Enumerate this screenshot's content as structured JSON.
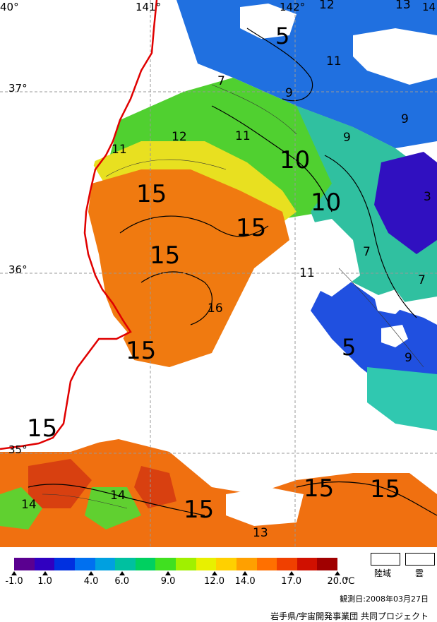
{
  "map": {
    "lon_labels": [
      "40°",
      "141°",
      "142°",
      "14"
    ],
    "lat_labels": [
      "37°",
      "36°",
      "35°"
    ],
    "contour_labels": [
      "5",
      "11",
      "9",
      "7",
      "12",
      "11",
      "11",
      "9",
      "10",
      "9",
      "10",
      "3",
      "15",
      "15",
      "7",
      "15",
      "11",
      "16",
      "7",
      "15",
      "5",
      "9",
      "15",
      "14",
      "14",
      "15",
      "15",
      "15",
      "13",
      "12",
      "13"
    ],
    "colors": {
      "coast": "#e00000",
      "grid": "#999999",
      "warm": "#f07a10",
      "hot": "#d83a10",
      "mid": "#f5b030",
      "green": "#40d020",
      "cyan": "#20c0a0",
      "blue": "#2060e0",
      "deep": "#3010c0"
    }
  },
  "legend": {
    "colorbar_stops": [
      "#5a0090",
      "#3000c0",
      "#0030e0",
      "#0070f0",
      "#00a0e0",
      "#00c0a0",
      "#00d060",
      "#40e020",
      "#a0f000",
      "#e8f000",
      "#ffd000",
      "#ffa000",
      "#ff7000",
      "#f04000",
      "#d01000",
      "#a00000"
    ],
    "ticks": [
      "-1.0",
      "1.0",
      "4.0",
      "6.0",
      "9.0",
      "12.0",
      "14.0",
      "17.0",
      "20.0"
    ],
    "tick_values": [
      -1.0,
      1.0,
      4.0,
      6.0,
      9.0,
      12.0,
      14.0,
      17.0,
      20.0
    ],
    "unit": "℃",
    "land_label": "陸域",
    "cloud_label": "雲"
  },
  "footer": {
    "observation_date": "観測日:2008年03月27日",
    "credit": "岩手県/宇宙開発事業団 共同プロジェクト"
  }
}
